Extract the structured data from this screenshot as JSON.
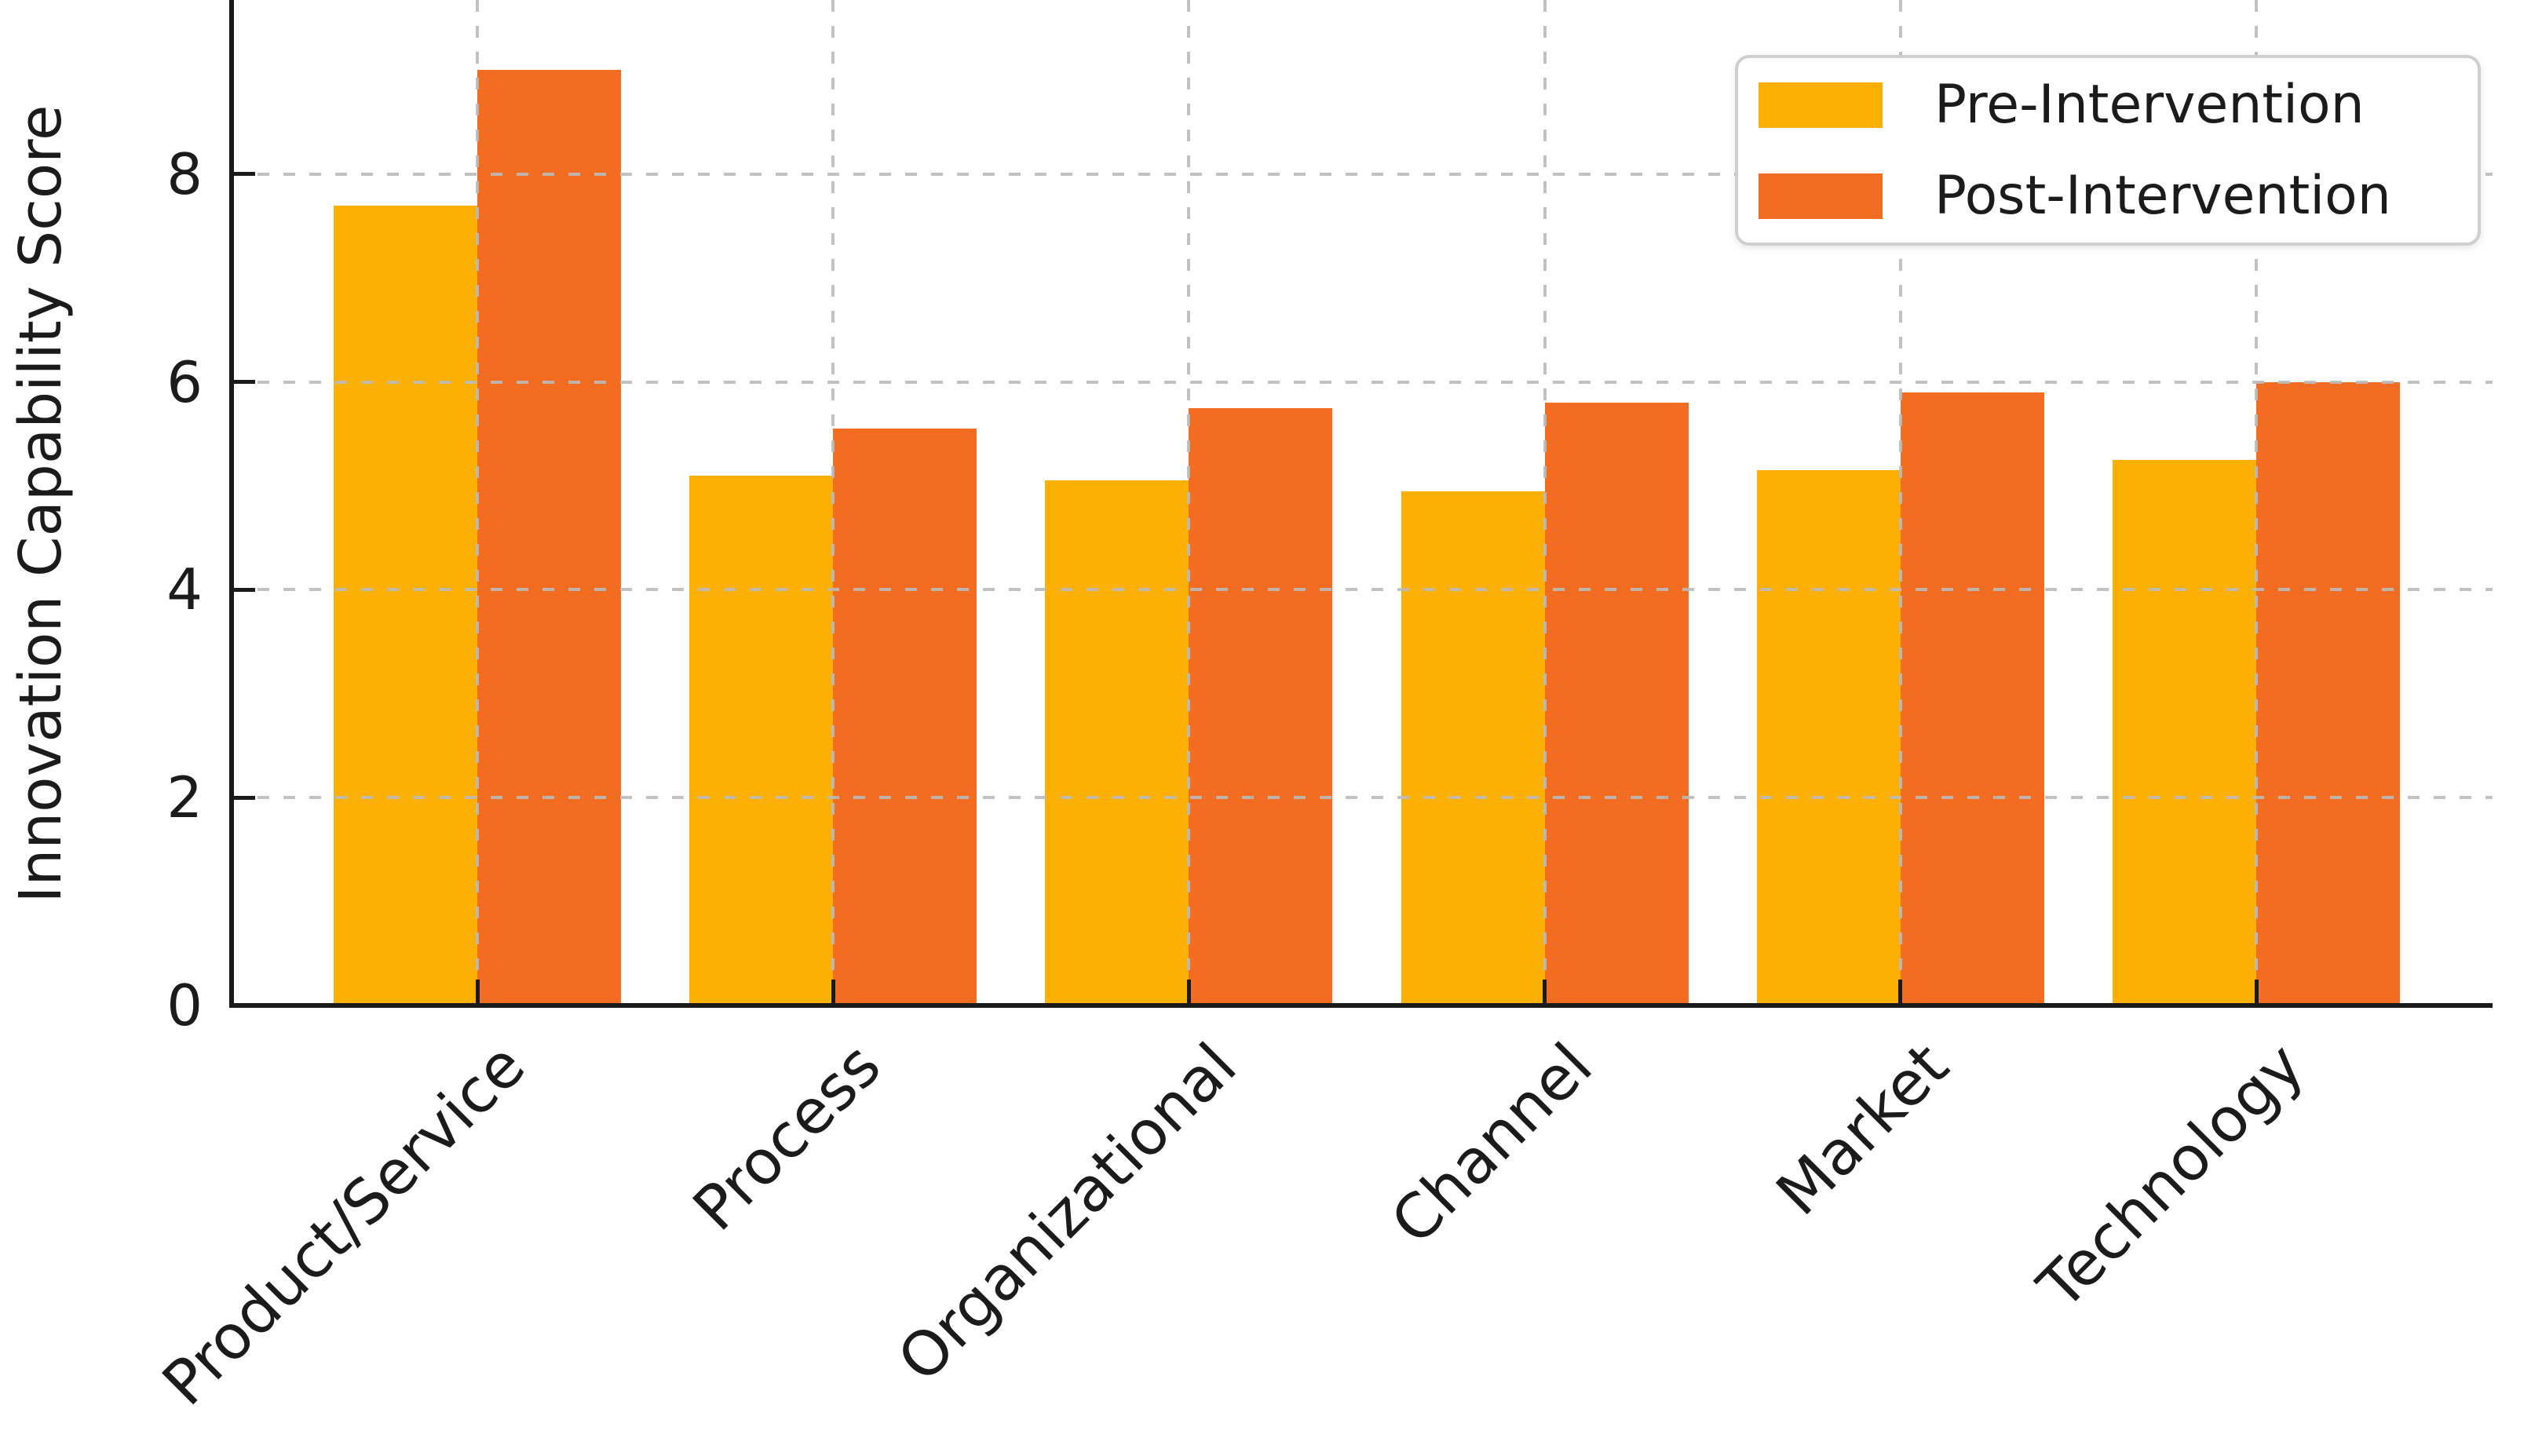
{
  "chart_data": {
    "type": "bar",
    "title": "",
    "categories": [
      "Product/Service",
      "Process",
      "Organizational",
      "Channel",
      "Market",
      "Technology"
    ],
    "series": [
      {
        "name": "Pre-Intervention",
        "color": "#FDB004",
        "values": [
          7.7,
          5.1,
          5.05,
          4.95,
          5.15,
          5.25
        ]
      },
      {
        "name": "Post-Intervention",
        "color": "#F26C21",
        "values": [
          9.0,
          5.55,
          5.75,
          5.8,
          5.9,
          6.0
        ]
      }
    ],
    "xlabel": "",
    "ylabel": "Innovation Capability Score",
    "yticks": [
      0,
      2,
      4,
      6,
      8
    ],
    "ylim": [
      0,
      9.7
    ],
    "grid": true,
    "grid_style": "dashed",
    "legend_position": "upper right",
    "colors": {
      "background": "#ffffff",
      "grid": "#bbbbbb",
      "spine": "#1a1a1a",
      "text": "#1b1b1b",
      "legend_border": "#cfcfcf"
    }
  }
}
